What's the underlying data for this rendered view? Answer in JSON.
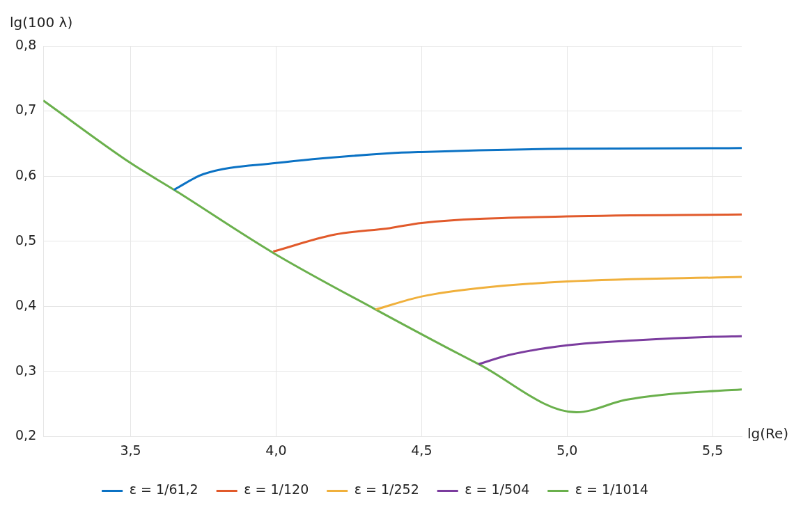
{
  "chart_data": {
    "type": "line",
    "xlabel": "lg(Re)",
    "ylabel": "lg(100 λ)",
    "xlim": [
      3.2,
      5.6
    ],
    "xticks": [
      {
        "value": 3.5,
        "label": "3,5"
      },
      {
        "value": 4.0,
        "label": "4,0"
      },
      {
        "value": 4.5,
        "label": "4,5"
      },
      {
        "value": 5.0,
        "label": "5,0"
      },
      {
        "value": 5.5,
        "label": "5,5"
      }
    ],
    "ylim": [
      0.2,
      0.8
    ],
    "yticks": [
      {
        "value": 0.2,
        "label": "0,2"
      },
      {
        "value": 0.3,
        "label": "0,3"
      },
      {
        "value": 0.4,
        "label": "0,4"
      },
      {
        "value": 0.5,
        "label": "0,5"
      },
      {
        "value": 0.6,
        "label": "0,6"
      },
      {
        "value": 0.7,
        "label": "0,7"
      },
      {
        "value": 0.8,
        "label": "0,8"
      }
    ],
    "grid": true,
    "legend": "bottom",
    "marker": "none",
    "line_style": "solid",
    "series": [
      {
        "name": "ε = 1/61,2",
        "color": "#0b72c4",
        "x": [
          3.649,
          3.75,
          4.0,
          4.39,
          4.5,
          5.0,
          5.6
        ],
        "values": [
          0.579,
          0.603,
          0.62,
          0.635,
          0.637,
          0.642,
          0.643
        ]
      },
      {
        "name": "ε = 1/120",
        "color": "#e15a2b",
        "x": [
          3.99,
          4.2,
          4.39,
          4.5,
          5.0,
          5.6
        ],
        "values": [
          0.484,
          0.51,
          0.52,
          0.528,
          0.538,
          0.541
        ]
      },
      {
        "name": "ε = 1/252",
        "color": "#f0b03c",
        "x": [
          4.342,
          4.5,
          4.7,
          5.0,
          5.6
        ],
        "values": [
          0.395,
          0.415,
          0.428,
          0.438,
          0.445
        ]
      },
      {
        "name": "ε = 1/504",
        "color": "#7b3c9e",
        "x": [
          4.696,
          4.8,
          5.0,
          5.25,
          5.5,
          5.6
        ],
        "values": [
          0.311,
          0.325,
          0.34,
          0.348,
          0.353,
          0.354
        ]
      },
      {
        "name": "ε = 1/1014",
        "color": "#6ab04c",
        "x": [
          3.2,
          3.5,
          3.649,
          3.99,
          4.342,
          4.696,
          5.032,
          5.2,
          5.35,
          5.6
        ],
        "values": [
          0.716,
          0.62,
          0.579,
          0.482,
          0.395,
          0.311,
          0.237,
          0.256,
          0.265,
          0.272
        ]
      }
    ]
  }
}
